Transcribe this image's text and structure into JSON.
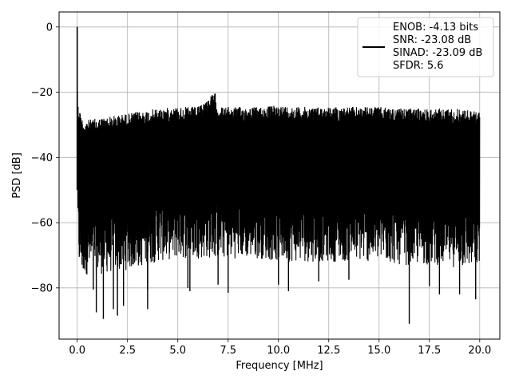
{
  "chart_data": {
    "type": "line",
    "title": "",
    "xlabel": "Frequency [MHz]",
    "ylabel": "PSD [dB]",
    "xlim": [
      -0.9,
      21.0
    ],
    "ylim": [
      -95.7,
      4.6
    ],
    "x_ticks": [
      0.0,
      2.5,
      5.0,
      7.5,
      10.0,
      12.5,
      15.0,
      17.5,
      20.0
    ],
    "x_tick_labels": [
      "0.0",
      "2.5",
      "5.0",
      "7.5",
      "10.0",
      "12.5",
      "15.0",
      "17.5",
      "20.0"
    ],
    "y_ticks": [
      0,
      -20,
      -40,
      -60,
      -80
    ],
    "y_tick_labels": [
      "0",
      "−20",
      "−40",
      "−60",
      "−80"
    ],
    "grid": true,
    "legend_position": "top-right",
    "series": [
      {
        "name": "ENOB: -4.13 bits\nSNR: -23.08 dB\nSINAD: -23.09 dB\nSFDR: 5.6",
        "color": "#000000",
        "x": [
          0.0,
          0.02,
          0.05,
          0.1,
          0.2,
          0.3,
          0.5,
          1.0,
          2.0,
          3.0,
          4.0,
          5.0,
          6.0,
          6.85,
          7.0,
          8.0,
          9.0,
          10.0,
          11.0,
          12.0,
          13.0,
          14.0,
          15.0,
          16.0,
          17.0,
          18.0,
          19.0,
          20.0
        ],
        "upper": [
          0.0,
          -22.0,
          -24.0,
          -25.0,
          -27.0,
          -29.0,
          -28.5,
          -28.0,
          -27.0,
          -26.0,
          -25.0,
          -24.5,
          -24.5,
          -20.0,
          -24.5,
          -24.5,
          -24.5,
          -24.0,
          -24.5,
          -24.5,
          -24.5,
          -24.5,
          -24.5,
          -25.0,
          -25.0,
          -25.0,
          -25.0,
          -26.0
        ],
        "lower_typical": [
          -45.0,
          -60.0,
          -66.0,
          -70.0,
          -72.0,
          -72.0,
          -72.0,
          -72.0,
          -71.0,
          -70.0,
          -68.0,
          -67.0,
          -67.0,
          -67.0,
          -67.0,
          -67.0,
          -67.0,
          -68.0,
          -68.0,
          -68.0,
          -68.0,
          -68.0,
          -68.0,
          -69.0,
          -69.0,
          -69.0,
          -70.0,
          -70.0
        ],
        "minima": [
          {
            "x": 0.3,
            "y": -74.0
          },
          {
            "x": 0.8,
            "y": -80.5
          },
          {
            "x": 0.95,
            "y": -87.5
          },
          {
            "x": 1.3,
            "y": -89.5
          },
          {
            "x": 1.8,
            "y": -86.5
          },
          {
            "x": 2.0,
            "y": -88.5
          },
          {
            "x": 2.3,
            "y": -85.5
          },
          {
            "x": 3.5,
            "y": -86.5
          },
          {
            "x": 3.5,
            "y": -80.5
          },
          {
            "x": 5.5,
            "y": -80.0
          },
          {
            "x": 5.6,
            "y": -81.0
          },
          {
            "x": 7.0,
            "y": -79.0
          },
          {
            "x": 7.5,
            "y": -81.5
          },
          {
            "x": 10.0,
            "y": -79.0
          },
          {
            "x": 10.5,
            "y": -81.0
          },
          {
            "x": 12.0,
            "y": -78.0
          },
          {
            "x": 13.5,
            "y": -77.5
          },
          {
            "x": 16.5,
            "y": -91.0
          },
          {
            "x": 17.5,
            "y": -79.5
          },
          {
            "x": 18.0,
            "y": -82.0
          },
          {
            "x": 19.0,
            "y": -82.0
          },
          {
            "x": 19.8,
            "y": -83.5
          }
        ]
      }
    ]
  }
}
